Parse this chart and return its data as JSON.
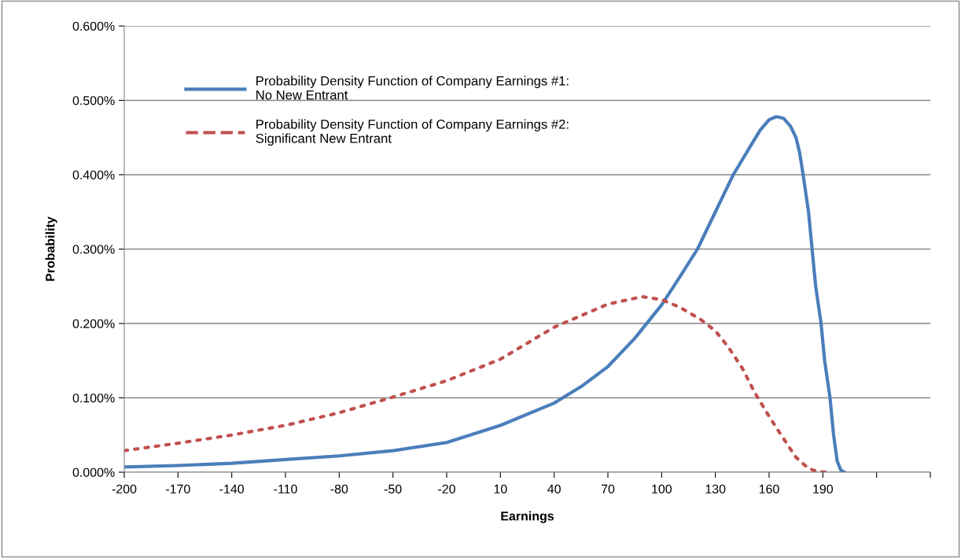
{
  "chart_data": {
    "type": "line",
    "xlabel": "Earnings",
    "ylabel": "Probability",
    "xlim": [
      -200,
      250
    ],
    "xticks": [
      -200,
      -170,
      -140,
      -110,
      -80,
      -50,
      -20,
      10,
      40,
      70,
      100,
      130,
      160,
      190,
      {
        "value": 220,
        "label": null
      },
      {
        "value": 250,
        "label": null
      }
    ],
    "ylim": [
      0,
      0.6
    ],
    "yticks": [
      {
        "value": 0,
        "label": "0.000%"
      },
      {
        "value": 0.1,
        "label": "0.100%"
      },
      {
        "value": 0.2,
        "label": "0.200%"
      },
      {
        "value": 0.3,
        "label": "0.300%"
      },
      {
        "value": 0.4,
        "label": "0.400%"
      },
      {
        "value": 0.5,
        "label": "0.500%"
      },
      {
        "value": 0.6,
        "label": "0.600%"
      }
    ],
    "grid": "y",
    "legend": "top left",
    "marker": "none",
    "series": [
      {
        "name": "Probability Density Function of Company Earnings #1:\nNo New Entrant",
        "color": "#4a7ebb",
        "line_style": "solid",
        "x": [
          -200,
          -170,
          -140,
          -110,
          -80,
          -50,
          -20,
          10,
          40,
          55,
          70,
          85,
          100,
          110,
          120,
          130,
          140,
          150,
          155,
          160,
          164,
          168,
          172,
          175,
          177,
          179,
          182,
          184,
          186,
          189,
          191,
          194,
          196,
          198,
          200,
          202
        ],
        "values": [
          0.007,
          0.009,
          0.012,
          0.017,
          0.022,
          0.029,
          0.04,
          0.063,
          0.093,
          0.115,
          0.142,
          0.18,
          0.225,
          0.262,
          0.3,
          0.35,
          0.4,
          0.44,
          0.46,
          0.474,
          0.478,
          0.476,
          0.465,
          0.45,
          0.43,
          0.4,
          0.35,
          0.3,
          0.25,
          0.2,
          0.15,
          0.1,
          0.05,
          0.015,
          0.003,
          0
        ]
      },
      {
        "name": "Probability Density Function of Company Earnings #2:\nSignificant New Entrant",
        "color": "#c0504d",
        "line_style": "dotted",
        "x": [
          -200,
          -170,
          -140,
          -110,
          -80,
          -50,
          -20,
          10,
          40,
          70,
          89,
          100,
          110,
          122,
          130,
          137,
          145,
          152,
          160,
          167,
          175,
          182,
          187,
          192
        ],
        "values": [
          0.029,
          0.039,
          0.05,
          0.063,
          0.08,
          0.101,
          0.123,
          0.152,
          0.195,
          0.226,
          0.236,
          0.232,
          0.222,
          0.205,
          0.19,
          0.169,
          0.14,
          0.107,
          0.075,
          0.049,
          0.02,
          0.005,
          0.001,
          0
        ]
      }
    ]
  }
}
